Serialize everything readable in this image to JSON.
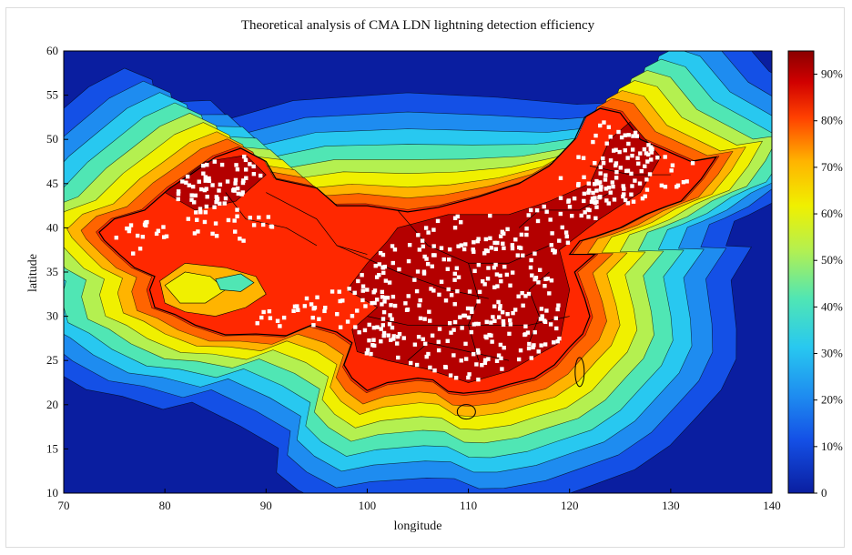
{
  "figure": {
    "title": "Theoretical analysis of CMA LDN lightning detection efficiency",
    "xlabel": "longitude",
    "ylabel": "latitude"
  },
  "map_data": {
    "type": "filled-contour-map",
    "x_ticks": [
      "70",
      "80",
      "90",
      "100",
      "110",
      "120",
      "130",
      "140"
    ],
    "y_ticks": [
      "10",
      "15",
      "20",
      "25",
      "30",
      "35",
      "40",
      "45",
      "50",
      "55",
      "60"
    ],
    "xlim": [
      70,
      140
    ],
    "ylim": [
      10,
      60
    ],
    "colorbar": {
      "ticks": [
        "0",
        "10%",
        "20%",
        "30%",
        "40%",
        "50%",
        "60%",
        "70%",
        "80%",
        "90%"
      ],
      "range": [
        0,
        95
      ]
    },
    "levels": [
      {
        "value": 0,
        "color": "#0a1ea0"
      },
      {
        "value": 10,
        "color": "#1450e6"
      },
      {
        "value": 20,
        "color": "#1e8cf0"
      },
      {
        "value": 30,
        "color": "#28c8f0"
      },
      {
        "value": 40,
        "color": "#50e6b4"
      },
      {
        "value": 50,
        "color": "#b4f050"
      },
      {
        "value": 60,
        "color": "#f0f000"
      },
      {
        "value": 70,
        "color": "#ffb400"
      },
      {
        "value": 80,
        "color": "#ff6400"
      },
      {
        "value": 85,
        "color": "#ff2800"
      },
      {
        "value": 90,
        "color": "#b40000"
      }
    ],
    "stations_note": "white dots mark detection stations"
  }
}
